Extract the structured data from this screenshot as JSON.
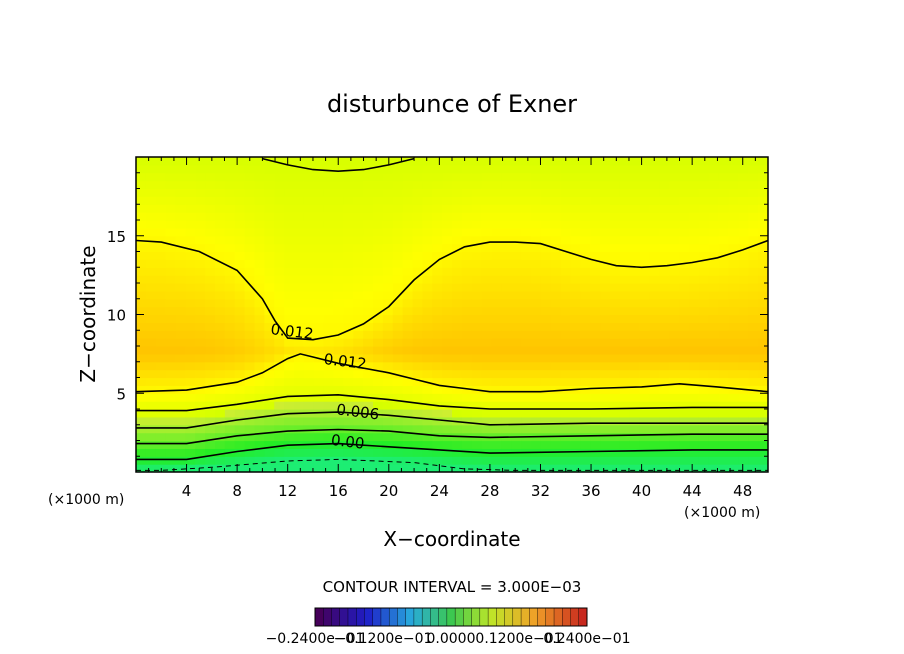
{
  "chart_data": {
    "type": "heatmap",
    "title": "disturbunce of Exner",
    "xlabel": "X−coordinate",
    "ylabel": "Z−coordinate",
    "x_unit": "(×1000 m)",
    "y_unit": "(×1000 m)",
    "xlim": [
      0,
      50
    ],
    "ylim": [
      0,
      20
    ],
    "x_ticks": [
      4,
      8,
      12,
      16,
      20,
      24,
      28,
      32,
      36,
      40,
      44,
      48
    ],
    "y_ticks": [
      5,
      10,
      15
    ],
    "contour_interval_text": "CONTOUR INTERVAL = 3.000E−03",
    "colorbar": {
      "labels": [
        "−0.2400e−01",
        "−0.1200e−01",
        "0.0000",
        "0.1200e−01",
        "0.2400e−01"
      ],
      "min": -0.024,
      "max": 0.024,
      "steps": 33
    },
    "contours": [
      {
        "level": -0.003,
        "style": "dashed",
        "points": [
          [
            0,
            0.1
          ],
          [
            2,
            0.1
          ],
          [
            6,
            0.3
          ],
          [
            12,
            0.7
          ],
          [
            16,
            0.8
          ],
          [
            22,
            0.6
          ],
          [
            26,
            0.2
          ],
          [
            30,
            0.1
          ],
          [
            50,
            0.1
          ]
        ]
      },
      {
        "level": 0.0,
        "label": "0.00",
        "label_at": [
          16.7,
          1.6
        ],
        "points": [
          [
            0,
            0.8
          ],
          [
            4,
            0.8
          ],
          [
            8,
            1.3
          ],
          [
            12,
            1.7
          ],
          [
            16,
            1.8
          ],
          [
            20,
            1.6
          ],
          [
            24,
            1.4
          ],
          [
            28,
            1.2
          ],
          [
            36,
            1.3
          ],
          [
            44,
            1.4
          ],
          [
            50,
            1.4
          ]
        ]
      },
      {
        "level": 0.003,
        "points": [
          [
            0,
            1.8
          ],
          [
            4,
            1.8
          ],
          [
            8,
            2.3
          ],
          [
            12,
            2.6
          ],
          [
            16,
            2.7
          ],
          [
            20,
            2.6
          ],
          [
            24,
            2.3
          ],
          [
            28,
            2.2
          ],
          [
            36,
            2.3
          ],
          [
            44,
            2.4
          ],
          [
            50,
            2.4
          ]
        ]
      },
      {
        "level": 0.006,
        "label": "0.006",
        "label_at": [
          17.5,
          3.5
        ],
        "points": [
          [
            0,
            2.8
          ],
          [
            4,
            2.8
          ],
          [
            8,
            3.3
          ],
          [
            12,
            3.7
          ],
          [
            16,
            3.8
          ],
          [
            20,
            3.6
          ],
          [
            24,
            3.3
          ],
          [
            28,
            3.0
          ],
          [
            36,
            3.1
          ],
          [
            44,
            3.1
          ],
          [
            50,
            3.1
          ]
        ]
      },
      {
        "level": 0.009,
        "points": [
          [
            0,
            3.9
          ],
          [
            4,
            3.9
          ],
          [
            8,
            4.3
          ],
          [
            12,
            4.8
          ],
          [
            16,
            4.9
          ],
          [
            20,
            4.6
          ],
          [
            24,
            4.2
          ],
          [
            28,
            4.0
          ],
          [
            36,
            4.0
          ],
          [
            44,
            4.1
          ],
          [
            50,
            4.1
          ]
        ]
      },
      {
        "level": 0.012,
        "label": "0.012",
        "label_at": [
          16.5,
          6.7
        ],
        "points": [
          [
            0,
            5.1
          ],
          [
            4,
            5.2
          ],
          [
            8,
            5.7
          ],
          [
            10,
            6.3
          ],
          [
            12,
            7.2
          ],
          [
            13,
            7.5
          ],
          [
            14,
            7.3
          ],
          [
            16,
            6.9
          ],
          [
            18,
            6.6
          ],
          [
            20,
            6.3
          ],
          [
            22,
            5.9
          ],
          [
            24,
            5.5
          ],
          [
            26,
            5.3
          ],
          [
            28,
            5.1
          ],
          [
            32,
            5.1
          ],
          [
            36,
            5.3
          ],
          [
            40,
            5.4
          ],
          [
            43,
            5.6
          ],
          [
            46,
            5.4
          ],
          [
            50,
            5.1
          ]
        ]
      },
      {
        "level": 0.012,
        "label": "0.012",
        "label_at": [
          12.3,
          8.6
        ],
        "points": [
          [
            0,
            14.7
          ],
          [
            2,
            14.6
          ],
          [
            5,
            14.0
          ],
          [
            8,
            12.8
          ],
          [
            10,
            11.0
          ],
          [
            11,
            9.6
          ],
          [
            12,
            8.5
          ],
          [
            14,
            8.4
          ],
          [
            16,
            8.7
          ],
          [
            18,
            9.4
          ],
          [
            20,
            10.5
          ],
          [
            22,
            12.2
          ],
          [
            24,
            13.5
          ],
          [
            26,
            14.3
          ],
          [
            28,
            14.6
          ],
          [
            30,
            14.6
          ],
          [
            32,
            14.5
          ],
          [
            34,
            14.0
          ],
          [
            36,
            13.5
          ],
          [
            38,
            13.1
          ],
          [
            40,
            13.0
          ],
          [
            42,
            13.1
          ],
          [
            44,
            13.3
          ],
          [
            46,
            13.6
          ],
          [
            48,
            14.1
          ],
          [
            50,
            14.7
          ]
        ]
      },
      {
        "level": 0.009,
        "points": [
          [
            10,
            19.9
          ],
          [
            12,
            19.5
          ],
          [
            14,
            19.2
          ],
          [
            16,
            19.1
          ],
          [
            18,
            19.2
          ],
          [
            20,
            19.5
          ],
          [
            22,
            19.9
          ]
        ]
      }
    ]
  }
}
